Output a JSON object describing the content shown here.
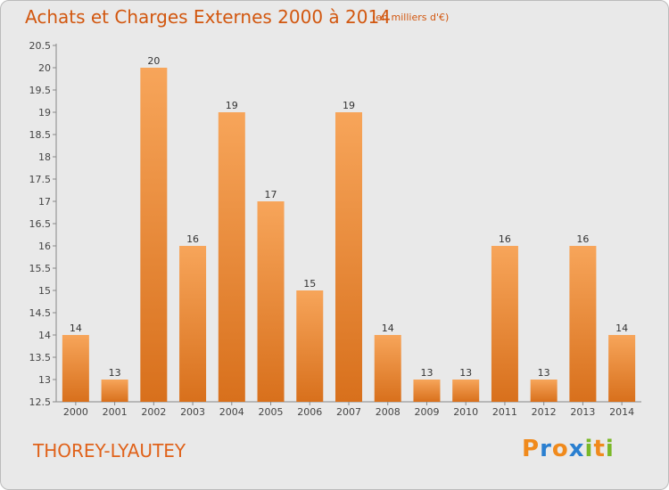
{
  "title": "Achats et Charges Externes 2000 à 2014",
  "unit_note": "(en milliers d'€)",
  "commune": "THOREY-LYAUTEY",
  "logo": {
    "letters": [
      "P",
      "r",
      "o",
      "x",
      "i",
      "t",
      "i"
    ],
    "colors": [
      "#f08a1c",
      "#2a7fd0",
      "#f08a1c",
      "#2a7fd0",
      "#7ab828",
      "#f08a1c",
      "#7ab828"
    ]
  },
  "colors": {
    "bar_light": "#f7a55a",
    "bar_dark": "#d8701c",
    "title": "#d2570f",
    "background": "#e9e9e9"
  },
  "chart_data": {
    "type": "bar",
    "categories": [
      "2000",
      "2001",
      "2002",
      "2003",
      "2004",
      "2005",
      "2006",
      "2007",
      "2008",
      "2009",
      "2010",
      "2011",
      "2012",
      "2013",
      "2014"
    ],
    "values": [
      14,
      13,
      20,
      16,
      19,
      17,
      15,
      19,
      14,
      13,
      13,
      16,
      13,
      16,
      14
    ],
    "title": "Achats et Charges Externes 2000 à 2014",
    "xlabel": "",
    "ylabel": "",
    "ylim": [
      12.5,
      20.5
    ],
    "yticks": [
      "12.5",
      "13",
      "13.5",
      "14",
      "14.5",
      "15",
      "15.5",
      "16",
      "16.5",
      "17",
      "17.5",
      "18",
      "18.5",
      "19",
      "19.5",
      "20",
      "20.5"
    ],
    "grid": false,
    "legend": "none"
  }
}
